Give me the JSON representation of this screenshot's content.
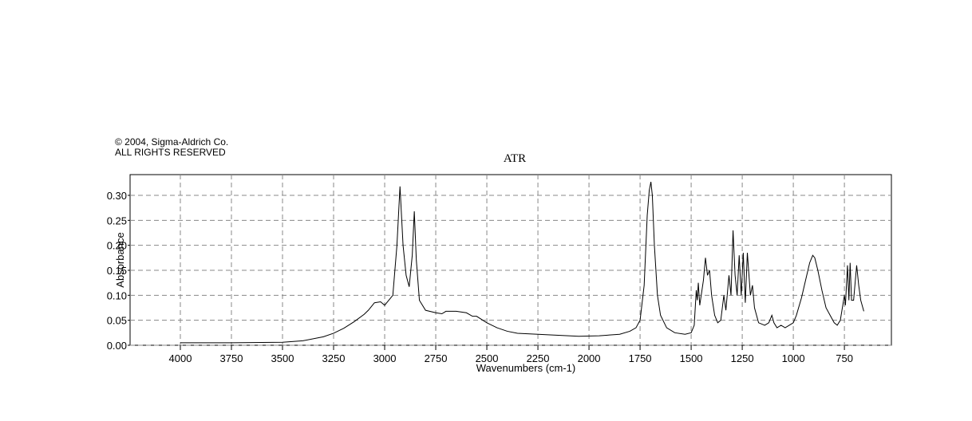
{
  "chart_data": {
    "type": "line",
    "copyright": "© 2004, Sigma-Aldrich Co.",
    "rights": "ALL RIGHTS RESERVED",
    "title": "ATR",
    "x_label": "Wavenumbers (cm-1)",
    "y_label": "Absorbance",
    "xlim": [
      4246,
      520
    ],
    "ylim": [
      0,
      0.3415
    ],
    "xticks": [
      4000,
      3750,
      3500,
      3250,
      3000,
      2750,
      2500,
      2250,
      2000,
      1750,
      1500,
      1250,
      1000,
      750
    ],
    "yticks": [
      {
        "value": 0,
        "label": "0.00"
      },
      {
        "value": 0.05,
        "label": "0.05"
      },
      {
        "value": 0.1,
        "label": "0.10"
      },
      {
        "value": 0.15,
        "label": "0.15"
      },
      {
        "value": 0.2,
        "label": "0.20"
      },
      {
        "value": 0.25,
        "label": "0.25"
      },
      {
        "value": 0.3,
        "label": "0.30"
      }
    ],
    "grid": true,
    "color": "#000000",
    "x": [
      4000,
      3750,
      3500,
      3400,
      3300,
      3250,
      3200,
      3150,
      3100,
      3080,
      3050,
      3020,
      3000,
      2960,
      2940,
      2925,
      2910,
      2895,
      2880,
      2865,
      2855,
      2845,
      2830,
      2800,
      2750,
      2720,
      2700,
      2650,
      2600,
      2570,
      2550,
      2500,
      2450,
      2400,
      2350,
      2250,
      2150,
      2050,
      1950,
      1850,
      1800,
      1770,
      1750,
      1730,
      1715,
      1705,
      1697,
      1690,
      1680,
      1665,
      1650,
      1620,
      1580,
      1530,
      1500,
      1485,
      1475,
      1470,
      1465,
      1458,
      1440,
      1430,
      1420,
      1410,
      1400,
      1385,
      1370,
      1355,
      1340,
      1330,
      1315,
      1305,
      1295,
      1285,
      1275,
      1265,
      1255,
      1245,
      1235,
      1225,
      1210,
      1200,
      1190,
      1170,
      1140,
      1120,
      1105,
      1095,
      1080,
      1060,
      1040,
      1020,
      1000,
      985,
      960,
      940,
      920,
      905,
      895,
      880,
      860,
      840,
      820,
      800,
      785,
      770,
      750,
      745,
      735,
      728,
      722,
      715,
      705,
      690,
      680,
      670,
      655
    ],
    "values": [
      0.005,
      0.005,
      0.006,
      0.009,
      0.017,
      0.024,
      0.034,
      0.047,
      0.062,
      0.07,
      0.085,
      0.087,
      0.08,
      0.1,
      0.2,
      0.318,
      0.2,
      0.14,
      0.117,
      0.18,
      0.268,
      0.17,
      0.09,
      0.07,
      0.065,
      0.063,
      0.068,
      0.068,
      0.065,
      0.058,
      0.058,
      0.045,
      0.035,
      0.028,
      0.024,
      0.022,
      0.02,
      0.018,
      0.019,
      0.022,
      0.028,
      0.035,
      0.05,
      0.12,
      0.26,
      0.31,
      0.327,
      0.3,
      0.2,
      0.1,
      0.06,
      0.035,
      0.025,
      0.022,
      0.025,
      0.04,
      0.11,
      0.09,
      0.125,
      0.08,
      0.13,
      0.175,
      0.14,
      0.15,
      0.1,
      0.06,
      0.045,
      0.05,
      0.1,
      0.07,
      0.14,
      0.1,
      0.23,
      0.14,
      0.1,
      0.18,
      0.1,
      0.185,
      0.085,
      0.185,
      0.1,
      0.12,
      0.075,
      0.045,
      0.04,
      0.045,
      0.06,
      0.045,
      0.035,
      0.04,
      0.035,
      0.04,
      0.045,
      0.06,
      0.095,
      0.13,
      0.165,
      0.18,
      0.175,
      0.15,
      0.11,
      0.075,
      0.06,
      0.045,
      0.04,
      0.05,
      0.1,
      0.08,
      0.16,
      0.09,
      0.165,
      0.09,
      0.09,
      0.16,
      0.12,
      0.09,
      0.068
    ]
  }
}
